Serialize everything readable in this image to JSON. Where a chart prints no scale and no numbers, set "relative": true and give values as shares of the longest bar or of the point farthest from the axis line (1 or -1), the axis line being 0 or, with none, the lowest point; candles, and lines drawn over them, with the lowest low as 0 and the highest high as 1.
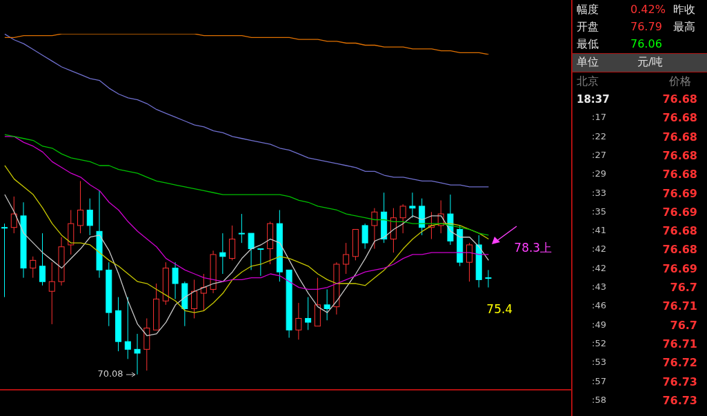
{
  "chart_data": [
    {
      "type": "candlestick",
      "relative": true,
      "legend": false,
      "marker": "none",
      "categories": [
        null,
        null,
        null,
        null,
        null,
        null,
        null,
        null,
        null,
        null,
        null,
        null,
        null,
        null,
        null,
        null,
        null,
        null,
        null,
        null,
        null,
        null,
        null,
        null,
        null,
        null,
        null,
        null,
        null,
        null,
        null,
        null,
        null,
        null,
        null,
        null,
        null,
        null,
        null,
        null,
        null,
        null,
        null,
        null,
        null,
        null,
        null,
        null,
        null,
        null,
        null,
        null
      ],
      "ohlc": [
        [
          0.76,
          0.78,
          0.4,
          0.76
        ],
        [
          0.76,
          0.92,
          0.73,
          0.83
        ],
        [
          0.82,
          0.89,
          0.5,
          0.55
        ],
        [
          0.55,
          0.61,
          0.5,
          0.59
        ],
        [
          0.56,
          0.73,
          0.46,
          0.48
        ],
        [
          0.43,
          0.58,
          0.26,
          0.48
        ],
        [
          0.48,
          0.71,
          0.46,
          0.66
        ],
        [
          0.67,
          0.85,
          0.62,
          0.78
        ],
        [
          0.77,
          1.0,
          0.73,
          0.85
        ],
        [
          0.85,
          0.91,
          0.72,
          0.77
        ],
        [
          0.74,
          0.95,
          0.5,
          0.54
        ],
        [
          0.54,
          0.58,
          0.25,
          0.32
        ],
        [
          0.33,
          0.4,
          0.12,
          0.17
        ],
        [
          0.17,
          0.4,
          0.08,
          0.13
        ],
        [
          0.13,
          0.21,
          0.0,
          0.11
        ],
        [
          0.13,
          0.29,
          0.02,
          0.24
        ],
        [
          0.23,
          0.47,
          0.23,
          0.39
        ],
        [
          0.38,
          0.58,
          0.36,
          0.55
        ],
        [
          0.55,
          0.58,
          0.39,
          0.47
        ],
        [
          0.47,
          0.48,
          0.25,
          0.34
        ],
        [
          0.34,
          0.49,
          0.29,
          0.43
        ],
        [
          0.42,
          0.52,
          0.33,
          0.45
        ],
        [
          0.44,
          0.64,
          0.42,
          0.62
        ],
        [
          0.63,
          0.73,
          0.52,
          0.61
        ],
        [
          0.6,
          0.77,
          0.59,
          0.7
        ],
        [
          0.73,
          0.83,
          0.68,
          0.73
        ],
        [
          0.73,
          0.73,
          0.54,
          0.65
        ],
        [
          0.65,
          0.65,
          0.51,
          0.65
        ],
        [
          0.65,
          0.79,
          0.57,
          0.78
        ],
        [
          0.78,
          0.85,
          0.48,
          0.53
        ],
        [
          0.54,
          0.54,
          0.19,
          0.23
        ],
        [
          0.23,
          0.37,
          0.18,
          0.29
        ],
        [
          0.29,
          0.4,
          0.23,
          0.27
        ],
        [
          0.25,
          0.5,
          0.25,
          0.36
        ],
        [
          0.36,
          0.44,
          0.28,
          0.34
        ],
        [
          0.35,
          0.58,
          0.31,
          0.57
        ],
        [
          0.57,
          0.68,
          0.52,
          0.62
        ],
        [
          0.61,
          0.75,
          0.59,
          0.75
        ],
        [
          0.77,
          0.78,
          0.65,
          0.68
        ],
        [
          0.77,
          0.86,
          0.65,
          0.84
        ],
        [
          0.84,
          0.94,
          0.68,
          0.7
        ],
        [
          0.7,
          0.86,
          0.63,
          0.81
        ],
        [
          0.81,
          0.88,
          0.73,
          0.87
        ],
        [
          0.87,
          0.94,
          0.81,
          0.86
        ],
        [
          0.87,
          0.91,
          0.72,
          0.76
        ],
        [
          0.76,
          0.84,
          0.7,
          0.77
        ],
        [
          0.77,
          0.9,
          0.73,
          0.83
        ],
        [
          0.83,
          0.93,
          0.67,
          0.69
        ],
        [
          0.75,
          0.77,
          0.56,
          0.58
        ],
        [
          0.58,
          0.68,
          0.48,
          0.67
        ],
        [
          0.67,
          0.72,
          0.45,
          0.49
        ],
        [
          0.5,
          0.54,
          0.45,
          0.5
        ]
      ],
      "colors": [
        "#00ffff",
        "#ff3232",
        "#00ffff",
        "#ff3232",
        "#00ffff",
        "#ff3232",
        "#ff3232",
        "#ff3232",
        "#ff3232",
        "#00ffff",
        "#00ffff",
        "#00ffff",
        "#00ffff",
        "#00ffff",
        "#00ffff",
        "#ff3232",
        "#ff3232",
        "#ff3232",
        "#00ffff",
        "#00ffff",
        "#ff3232",
        "#ff3232",
        "#ff3232",
        "#00ffff",
        "#ff3232",
        "#00ffff",
        "#00ffff",
        "#00ffff",
        "#ff3232",
        "#00ffff",
        "#00ffff",
        "#ff3232",
        "#00ffff",
        "#ff3232",
        "#00ffff",
        "#ff3232",
        "#ff3232",
        "#ff3232",
        "#00ffff",
        "#ff3232",
        "#00ffff",
        "#ff3232",
        "#ff3232",
        "#00ffff",
        "#00ffff",
        "#ff3232",
        "#ff3232",
        "#00ffff",
        "#00ffff",
        "#ff3232",
        "#00ffff",
        "#00ffff"
      ],
      "series": [
        {
          "type": "line",
          "color": "#c8c8c8",
          "values": [
            0.93,
            0.84,
            0.73,
            0.68,
            0.63,
            0.59,
            0.55,
            0.6,
            0.65,
            0.71,
            0.72,
            0.64,
            0.52,
            0.38,
            0.26,
            0.2,
            0.21,
            0.27,
            0.36,
            0.4,
            0.43,
            0.45,
            0.47,
            0.48,
            0.53,
            0.6,
            0.65,
            0.67,
            0.7,
            0.68,
            0.59,
            0.5,
            0.42,
            0.35,
            0.32,
            0.38,
            0.45,
            0.52,
            0.6,
            0.69,
            0.71,
            0.75,
            0.78,
            0.82,
            0.8,
            0.82,
            0.82,
            0.74,
            0.71,
            0.71,
            0.66,
            0.59
          ]
        },
        {
          "type": "line",
          "color": "#c8c800",
          "values": [
            1.08,
            1.01,
            0.97,
            0.93,
            0.86,
            0.78,
            0.72,
            0.68,
            0.68,
            0.67,
            0.63,
            0.59,
            0.56,
            0.52,
            0.48,
            0.47,
            0.44,
            0.41,
            0.38,
            0.33,
            0.32,
            0.33,
            0.37,
            0.42,
            0.49,
            0.53,
            0.56,
            0.57,
            0.59,
            0.61,
            0.6,
            0.58,
            0.56,
            0.52,
            0.49,
            0.47,
            0.47,
            0.47,
            0.46,
            0.5,
            0.54,
            0.59,
            0.65,
            0.7,
            0.74,
            0.77,
            0.78,
            0.78,
            0.77,
            0.75,
            0.73,
            0.7
          ]
        },
        {
          "type": "line",
          "color": "#d000d0",
          "values": [
            1.23,
            1.23,
            1.2,
            1.18,
            1.15,
            1.1,
            1.07,
            1.04,
            1.02,
            0.98,
            0.95,
            0.89,
            0.85,
            0.79,
            0.74,
            0.7,
            0.66,
            0.6,
            0.57,
            0.54,
            0.52,
            0.5,
            0.49,
            0.48,
            0.49,
            0.49,
            0.5,
            0.5,
            0.52,
            0.51,
            0.48,
            0.45,
            0.44,
            0.44,
            0.45,
            0.47,
            0.49,
            0.51,
            0.53,
            0.54,
            0.55,
            0.57,
            0.6,
            0.62,
            0.62,
            0.63,
            0.63,
            0.63,
            0.63,
            0.63,
            0.62,
            0.62
          ]
        },
        {
          "type": "line",
          "color": "#00c000",
          "values": [
            1.24,
            1.23,
            1.22,
            1.21,
            1.18,
            1.17,
            1.14,
            1.12,
            1.11,
            1.1,
            1.08,
            1.08,
            1.06,
            1.05,
            1.04,
            1.02,
            1.0,
            0.99,
            0.98,
            0.97,
            0.96,
            0.95,
            0.94,
            0.93,
            0.93,
            0.93,
            0.93,
            0.93,
            0.93,
            0.93,
            0.92,
            0.9,
            0.89,
            0.87,
            0.86,
            0.85,
            0.83,
            0.82,
            0.81,
            0.8,
            0.8,
            0.79,
            0.79,
            0.78,
            0.78,
            0.78,
            0.78,
            0.77,
            0.76,
            0.75,
            0.73,
            0.72
          ]
        },
        {
          "type": "line",
          "color": "#7070d0",
          "values": [
            1.76,
            1.73,
            1.71,
            1.68,
            1.65,
            1.62,
            1.59,
            1.57,
            1.55,
            1.53,
            1.52,
            1.48,
            1.45,
            1.43,
            1.42,
            1.4,
            1.37,
            1.35,
            1.33,
            1.31,
            1.29,
            1.28,
            1.26,
            1.25,
            1.23,
            1.22,
            1.21,
            1.2,
            1.19,
            1.17,
            1.16,
            1.14,
            1.12,
            1.11,
            1.1,
            1.09,
            1.08,
            1.07,
            1.05,
            1.05,
            1.03,
            1.02,
            1.02,
            1.01,
            1.0,
            1.0,
            0.99,
            0.98,
            0.98,
            0.97,
            0.97,
            0.97
          ]
        }
      ],
      "annotations": [
        "70.08",
        "75.4",
        "78.3上"
      ]
    },
    {
      "type": "line",
      "relative": true,
      "marker": "none",
      "categories": [
        null,
        null,
        null,
        null,
        null,
        null,
        null,
        null,
        null,
        null,
        null,
        null,
        null,
        null,
        null,
        null,
        null,
        null,
        null,
        null,
        null,
        null,
        null,
        null,
        null,
        null,
        null,
        null,
        null,
        null,
        null,
        null,
        null,
        null,
        null,
        null,
        null,
        null,
        null,
        null,
        null,
        null,
        null,
        null,
        null,
        null,
        null,
        null,
        null,
        null,
        null,
        null
      ],
      "series": [
        {
          "color": "#e07000",
          "values": [
            0.82,
            0.82,
            0.91,
            0.91,
            0.91,
            0.91,
            1,
            1,
            1,
            1,
            1,
            1,
            1,
            1,
            1,
            1,
            1,
            1,
            1,
            1,
            1,
            0.91,
            0.91,
            0.91,
            0.91,
            0.91,
            0.82,
            0.82,
            0.82,
            0.82,
            0.82,
            0.73,
            0.73,
            0.73,
            0.64,
            0.64,
            0.55,
            0.55,
            0.45,
            0.45,
            0.36,
            0.36,
            0.36,
            0.27,
            0.27,
            0.27,
            0.18,
            0.18,
            0.09,
            0.09,
            0.09,
            0
          ]
        }
      ]
    },
    {
      "type": "other",
      "data_labels": true,
      "categories": [
        "18:37",
        ":17",
        ":22",
        ":27",
        ":29",
        ":33",
        ":35",
        ":41",
        ":42",
        ":42",
        ":43",
        ":46",
        ":49",
        ":52",
        ":53",
        ":57",
        ":58"
      ],
      "values": [
        76.68,
        76.68,
        76.68,
        76.68,
        76.68,
        76.69,
        76.69,
        76.68,
        76.68,
        76.69,
        76.7,
        76.71,
        76.7,
        76.71,
        76.72,
        76.73,
        76.73
      ],
      "colors": [
        "#ff3232",
        "#ff3232",
        "#ff3232",
        "#ff3232",
        "#ff3232",
        "#ff3232",
        "#ff3232",
        "#ff3232",
        "#ff3232",
        "#ff3232",
        "#ff3232",
        "#ff3232",
        "#ff3232",
        "#ff3232",
        "#ff3232",
        "#ff3232",
        "#ff3232"
      ],
      "annotations": [
        "幅度",
        "0.42%",
        "昨收",
        "开盘",
        "76.79",
        "最高",
        "最低",
        "76.06",
        "单位",
        "元/吨",
        "北京",
        "价格"
      ]
    }
  ]
}
